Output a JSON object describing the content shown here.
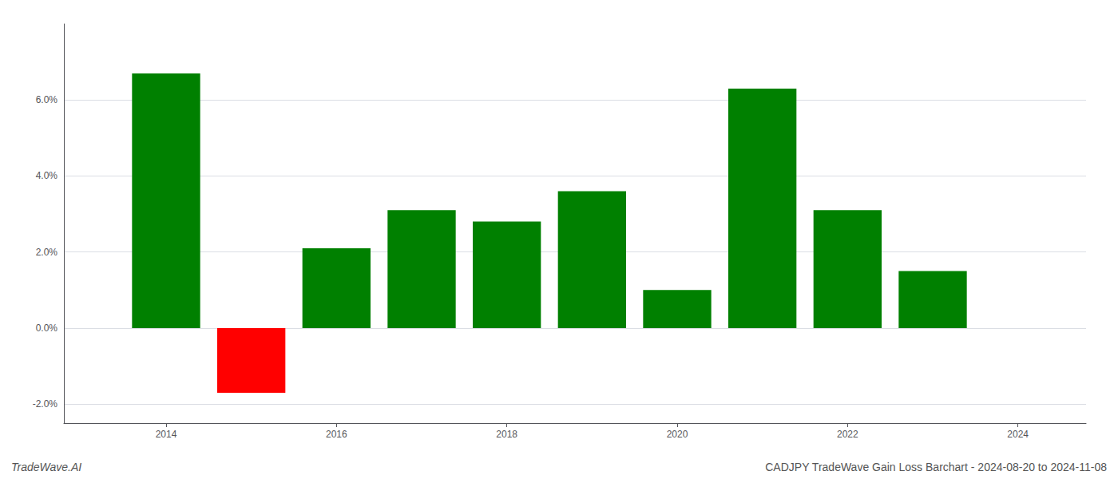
{
  "chart_data": {
    "type": "bar",
    "x": [
      2014,
      2015,
      2016,
      2017,
      2018,
      2019,
      2020,
      2021,
      2022,
      2023
    ],
    "values": [
      0.067,
      -0.017,
      0.021,
      0.031,
      0.028,
      0.036,
      0.01,
      0.063,
      0.031,
      0.015
    ],
    "colors": [
      "#008000",
      "#ff0000",
      "#008000",
      "#008000",
      "#008000",
      "#008000",
      "#008000",
      "#008000",
      "#008000",
      "#008000"
    ],
    "xlim": [
      2012.8,
      2024.8
    ],
    "xticks": [
      2014,
      2016,
      2018,
      2020,
      2022,
      2024
    ],
    "ylim": [
      -0.025,
      0.08
    ],
    "yticks": [
      {
        "value": -0.02,
        "label": "-2.0%"
      },
      {
        "value": 0.0,
        "label": "0.0%"
      },
      {
        "value": 0.02,
        "label": "2.0%"
      },
      {
        "value": 0.04,
        "label": "4.0%"
      },
      {
        "value": 0.06,
        "label": "6.0%"
      }
    ],
    "grid": true,
    "annotations": [
      "TradeWave.AI",
      "CADJPY TradeWave Gain Loss Barchart - 2024-08-20 to 2024-11-08"
    ]
  }
}
